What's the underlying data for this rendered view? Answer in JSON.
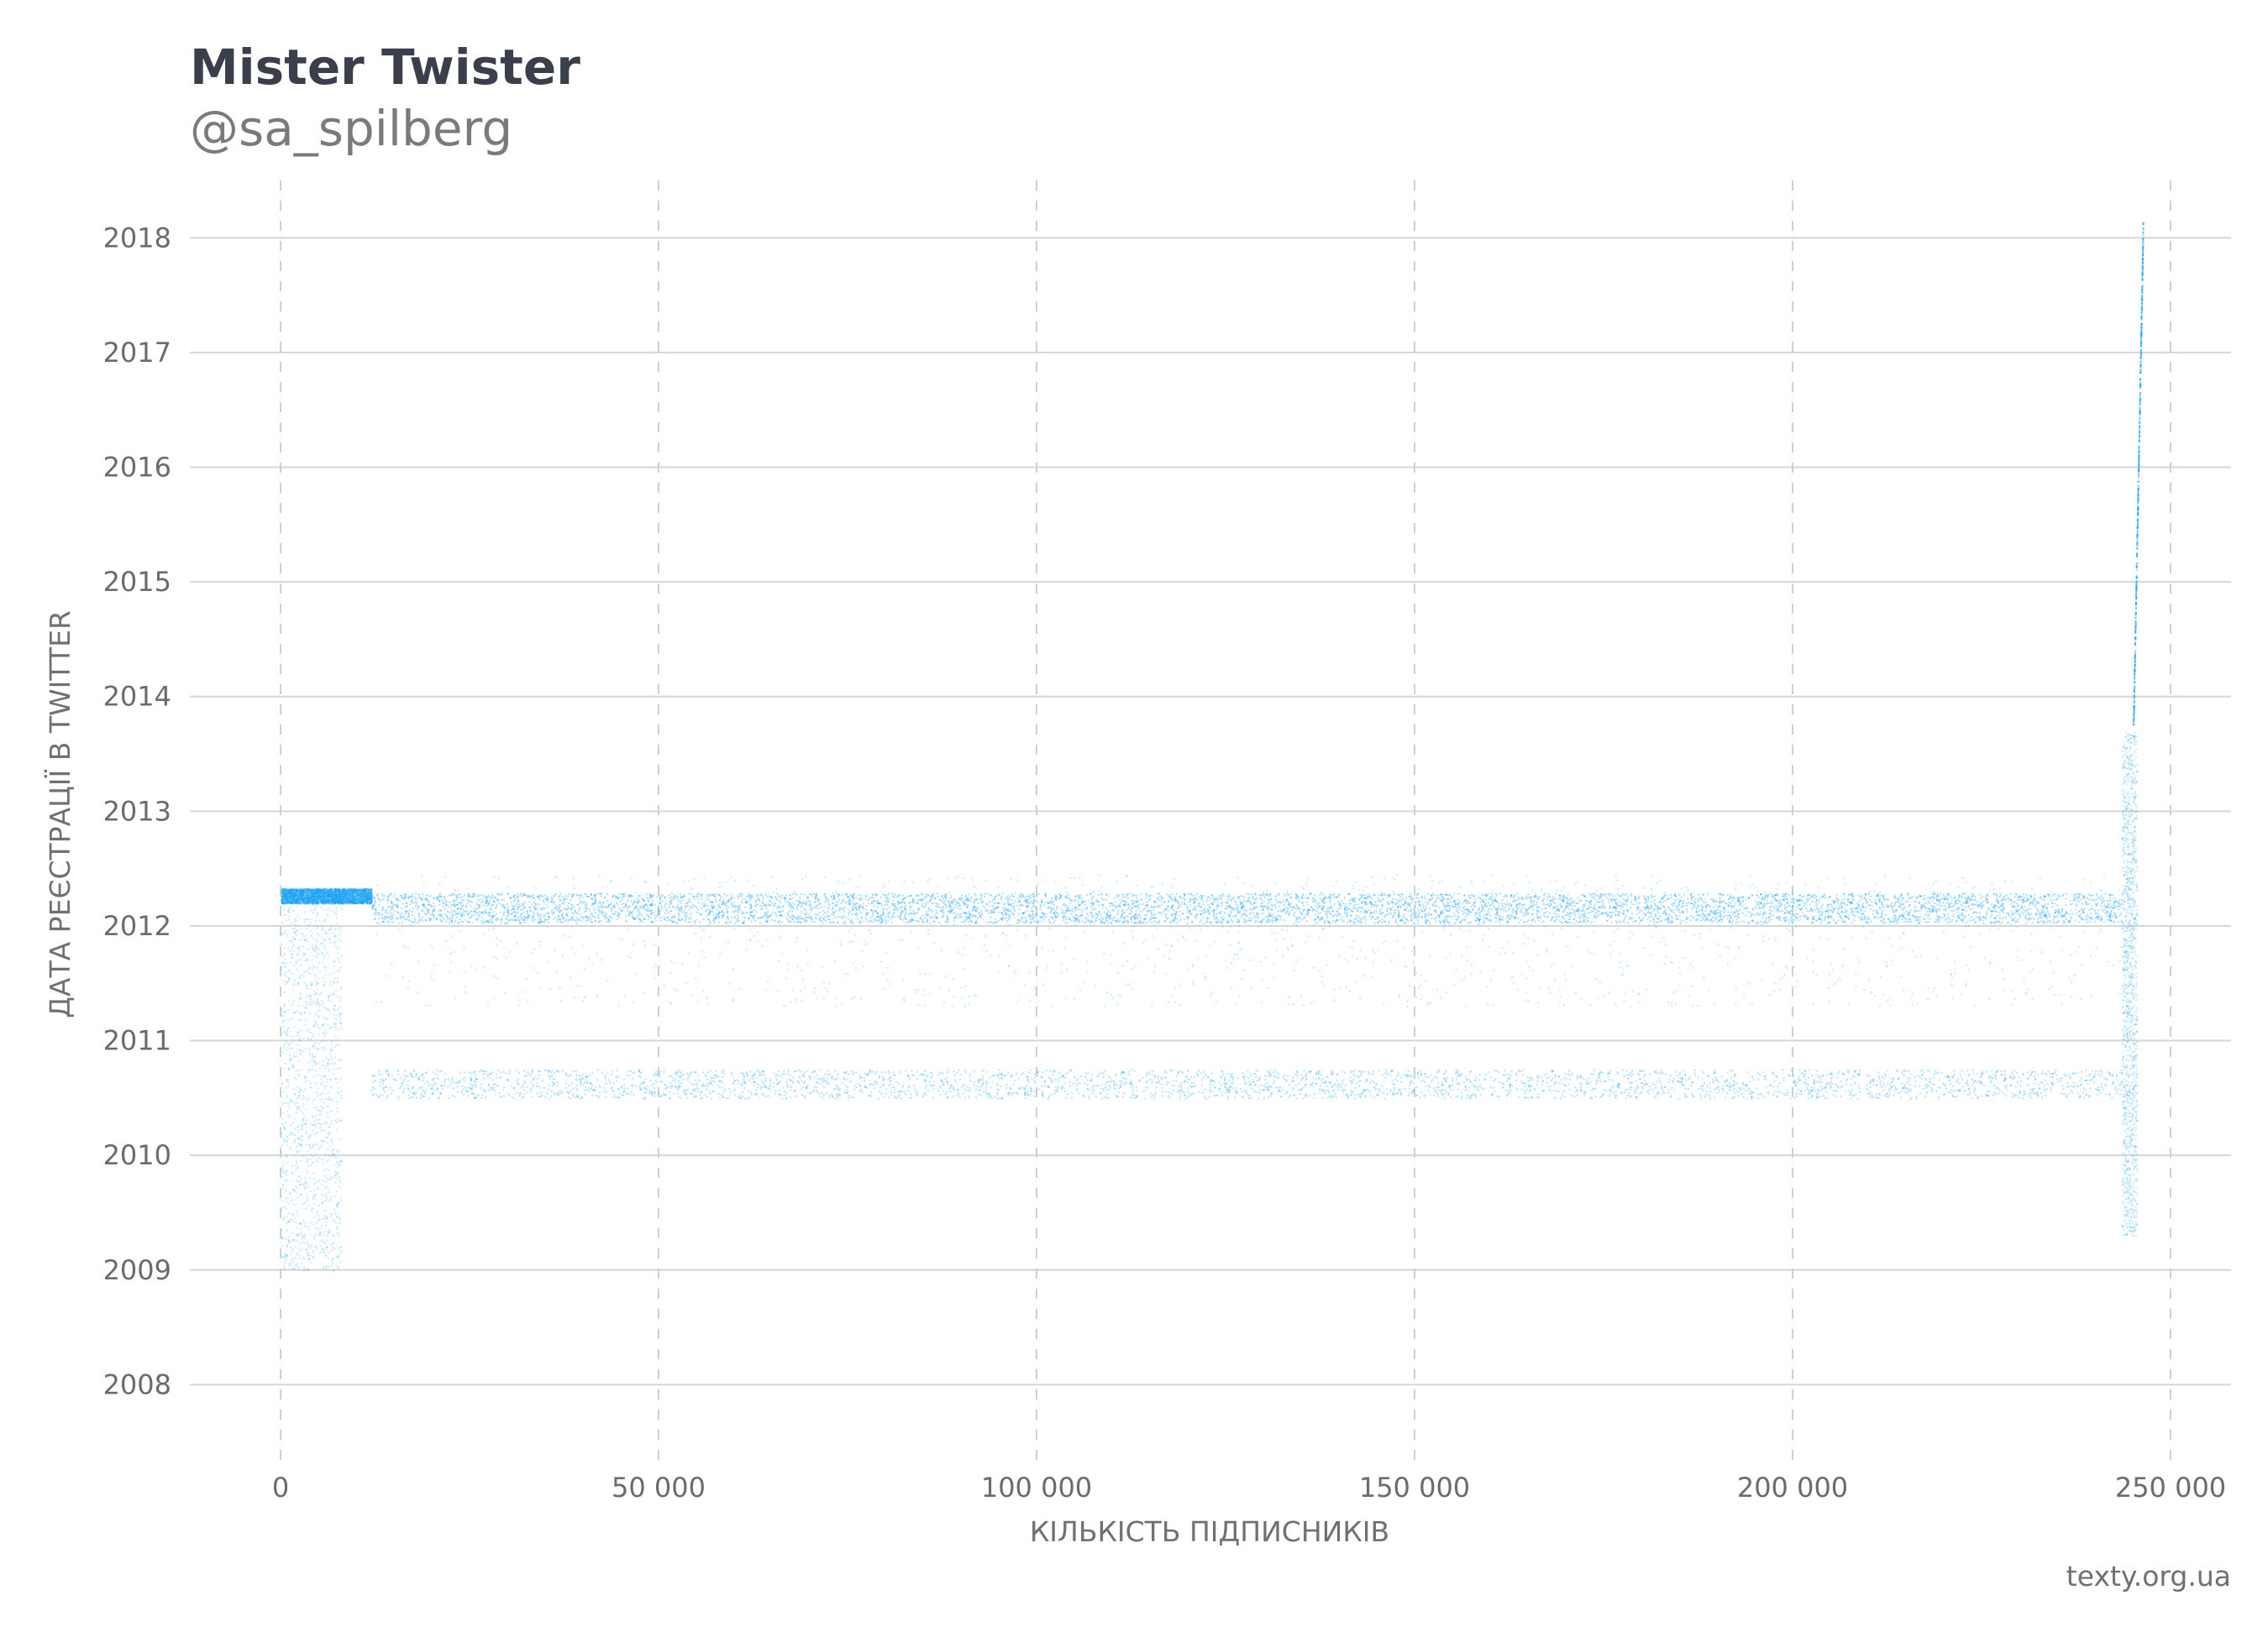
{
  "chart_data": {
    "type": "scatter",
    "title": "Mister Twister",
    "subtitle": "@sa_spilberg",
    "xlabel": "КІЛЬКІСТЬ ПІДПИСНИКІВ",
    "ylabel": "ДАТА РЕЄСТРАЦІЇ В TWITTER",
    "source": "texty.org.ua",
    "xlim": [
      -12000,
      258000
    ],
    "ylim": [
      2007.3,
      2018.5
    ],
    "x_ticks": [
      0,
      50000,
      100000,
      150000,
      200000,
      250000
    ],
    "x_tick_labels": [
      "0",
      "50 000",
      "100 000",
      "150 000",
      "200 000",
      "250 000"
    ],
    "y_ticks": [
      2008,
      2009,
      2010,
      2011,
      2012,
      2013,
      2014,
      2015,
      2016,
      2017,
      2018
    ],
    "y_tick_labels": [
      "2008",
      "2009",
      "2010",
      "2011",
      "2012",
      "2013",
      "2014",
      "2015",
      "2016",
      "2017",
      "2018"
    ],
    "grid": {
      "horizontal": "solid",
      "vertical": "dashed"
    },
    "point_color": "#1da1f2",
    "series": [
      {
        "x_range": [
          12000,
          243500
        ],
        "y_range": [
          2012.03,
          2012.29
        ],
        "density": "very high"
      },
      {
        "x_range": [
          12000,
          243500
        ],
        "y_range": [
          2010.5,
          2010.75
        ],
        "density": "high"
      },
      {
        "x_range": [
          0,
          12000
        ],
        "y_range": [
          2012.2,
          2012.33
        ],
        "density": "high"
      },
      {
        "x_range": [
          12000,
          243500
        ],
        "y_range": [
          2011.3,
          2012.45
        ],
        "density": "sparse"
      },
      {
        "x_range": [
          0,
          8000
        ],
        "y_range": [
          2009.0,
          2012.3
        ],
        "density": "sparse"
      },
      {
        "x_range": [
          243500,
          245500
        ],
        "y_range": [
          2009.3,
          2013.7
        ],
        "density": "sparse"
      },
      {
        "x_range": [
          245000,
          246300
        ],
        "y_range": [
          2013.7,
          2018.1
        ],
        "density": "line"
      }
    ]
  }
}
